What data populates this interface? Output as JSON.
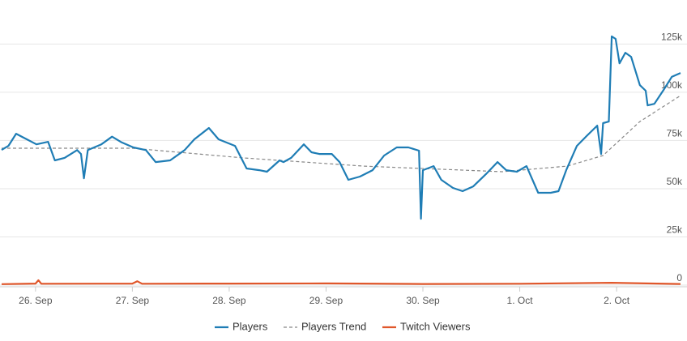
{
  "chart_data": {
    "type": "line",
    "xlim": [
      -0.35,
      6.66
    ],
    "xticks": [
      {
        "value": 0,
        "label": "26. Sep"
      },
      {
        "value": 1,
        "label": "27. Sep"
      },
      {
        "value": 2,
        "label": "28. Sep"
      },
      {
        "value": 3,
        "label": "29. Sep"
      },
      {
        "value": 4,
        "label": "30. Sep"
      },
      {
        "value": 5,
        "label": "1. Oct"
      },
      {
        "value": 6,
        "label": "2. Oct"
      }
    ],
    "ylim": [
      0,
      147000
    ],
    "yticks": [
      0,
      {
        "value": 25000,
        "label": "25k"
      },
      {
        "value": 50000,
        "label": "50k"
      },
      {
        "value": 75000,
        "label": "75k"
      },
      {
        "value": 100000,
        "label": "100k"
      },
      {
        "value": 125000,
        "label": "125k"
      }
    ],
    "grid": true,
    "legend": "bottom",
    "series": [
      {
        "name": "Players",
        "color": "#1f7db5",
        "dash": false,
        "x": [
          -0.35,
          -0.28,
          -0.2,
          -0.12,
          0.01,
          0.13,
          0.2,
          0.3,
          0.43,
          0.47,
          0.5,
          0.54,
          0.68,
          0.79,
          0.89,
          1.01,
          1.14,
          1.24,
          1.39,
          1.54,
          1.64,
          1.79,
          1.89,
          2.06,
          2.18,
          2.31,
          2.39,
          2.52,
          2.56,
          2.64,
          2.77,
          2.85,
          2.93,
          3.06,
          3.14,
          3.23,
          3.35,
          3.48,
          3.6,
          3.73,
          3.85,
          3.96,
          3.98,
          4.0,
          4.11,
          4.19,
          4.31,
          4.41,
          4.52,
          4.65,
          4.77,
          4.86,
          4.97,
          5.07,
          5.19,
          5.32,
          5.4,
          5.48,
          5.59,
          5.69,
          5.8,
          5.84,
          5.86,
          5.92,
          5.95,
          5.99,
          6.03,
          6.09,
          6.15,
          6.24,
          6.3,
          6.32,
          6.39,
          6.49,
          6.57,
          6.66
        ],
        "values": [
          70100,
          72200,
          78500,
          76400,
          73000,
          74300,
          64700,
          66000,
          70000,
          68000,
          55400,
          70000,
          73000,
          77000,
          74000,
          71400,
          70000,
          63800,
          64700,
          70000,
          75600,
          81500,
          75600,
          72200,
          60500,
          59600,
          58800,
          64700,
          63800,
          66000,
          73000,
          68900,
          68000,
          68000,
          63800,
          54600,
          56300,
          59600,
          67200,
          71400,
          71400,
          69700,
          34400,
          59600,
          61700,
          54600,
          50400,
          48700,
          51200,
          57500,
          63800,
          59600,
          58800,
          61700,
          47900,
          47900,
          48700,
          59600,
          72200,
          77300,
          82700,
          68000,
          84000,
          84800,
          129000,
          127700,
          115000,
          120500,
          118400,
          103700,
          100800,
          93200,
          94000,
          101600,
          108000,
          110000
        ]
      },
      {
        "name": "Players Trend",
        "color": "#888888",
        "dash": true,
        "x": [
          -0.35,
          1.0,
          2.14,
          3.39,
          4.82,
          5.49,
          5.86,
          6.24,
          6.66
        ],
        "values": [
          71000,
          71000,
          66000,
          61700,
          58800,
          61700,
          67200,
          84800,
          98300
        ]
      },
      {
        "name": "Twitch Viewers",
        "color": "#e0572b",
        "dash": false,
        "x": [
          -0.35,
          0.0,
          0.03,
          0.06,
          1.0,
          1.05,
          1.1,
          2.0,
          3.0,
          4.0,
          5.0,
          5.95,
          6.66
        ],
        "values": [
          500,
          800,
          2500,
          700,
          800,
          2000,
          700,
          800,
          900,
          600,
          700,
          1200,
          600
        ]
      }
    ]
  }
}
